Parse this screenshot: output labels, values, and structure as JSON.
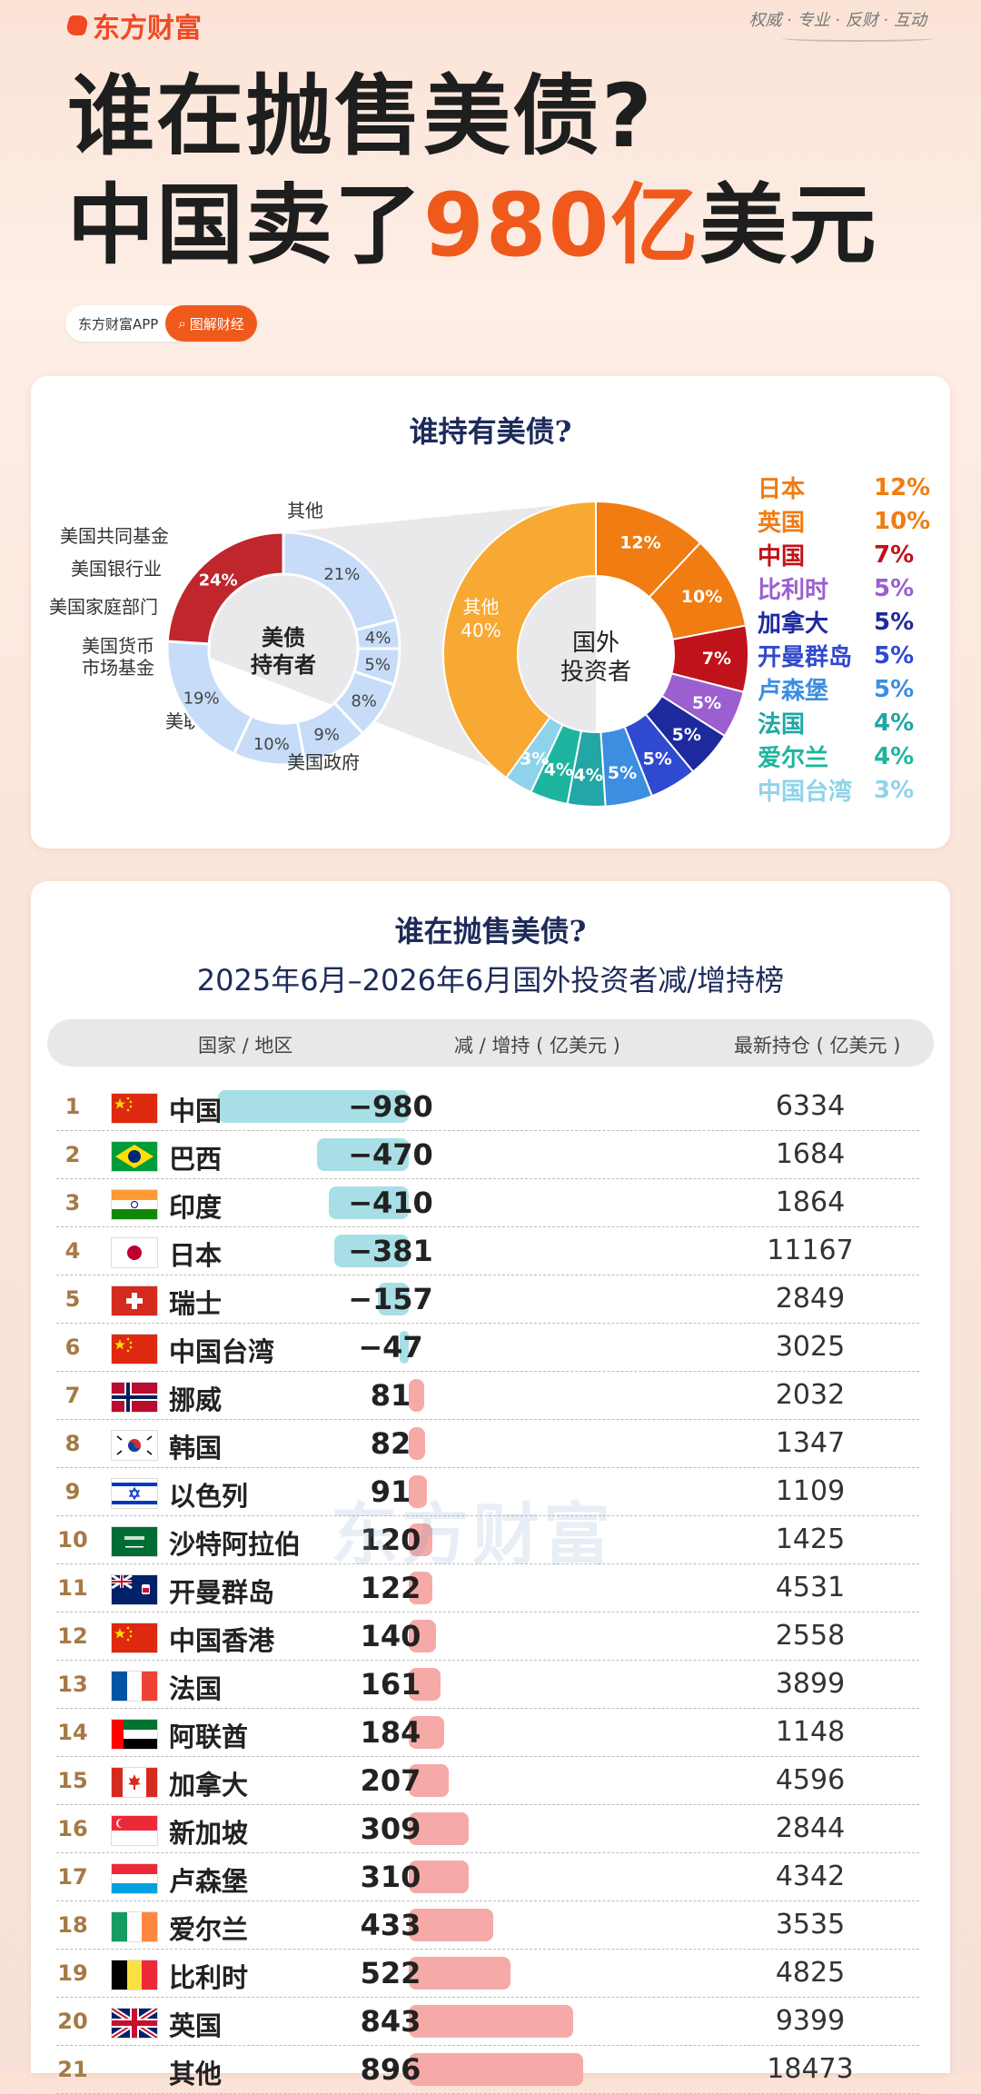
{
  "brand": {
    "logo": "东方财富",
    "slogan": "权威 · 专业 · 反财 · 互动",
    "watermark": "东方财富"
  },
  "headline": {
    "line1": "谁在抛售美债?",
    "line2_pre": "中国卖了",
    "line2_hl": "980亿",
    "line2_post": "美元"
  },
  "app": {
    "name": "东方财富APP",
    "button": "图解财经"
  },
  "chart_data": [
    {
      "type": "pie",
      "title": "谁持有美债?",
      "center_label": "美债\n持有者",
      "slices": [
        {
          "label": "其他",
          "value": 21,
          "color": "#c6dcf8"
        },
        {
          "label": "美国共同基金",
          "value": 4,
          "color": "#c6dcf8"
        },
        {
          "label": "美国银行业",
          "value": 5,
          "color": "#c6dcf8"
        },
        {
          "label": "美国家庭部门",
          "value": 8,
          "color": "#c6dcf8"
        },
        {
          "label": "美国货币\n市场基金",
          "value": 9,
          "color": "#c6dcf8"
        },
        {
          "label": "美联储",
          "value": 10,
          "color": "#c6dcf8"
        },
        {
          "label": "美国政府",
          "value": 19,
          "color": "#c6dcf8"
        },
        {
          "label": "国外投资者",
          "value": 24,
          "color": "#c0272d"
        }
      ]
    },
    {
      "type": "pie",
      "center_label": "国外\n投资者",
      "slices": [
        {
          "label": "日本",
          "value": 12,
          "color": "#f07c12"
        },
        {
          "label": "英国",
          "value": 10,
          "color": "#f07c12"
        },
        {
          "label": "中国",
          "value": 7,
          "color": "#c0121a"
        },
        {
          "label": "比利时",
          "value": 5,
          "color": "#9b5fd0"
        },
        {
          "label": "加拿大",
          "value": 5,
          "color": "#1d2a9e"
        },
        {
          "label": "开曼群岛",
          "value": 5,
          "color": "#2f49d0"
        },
        {
          "label": "卢森堡",
          "value": 5,
          "color": "#3b8ee0"
        },
        {
          "label": "法国",
          "value": 4,
          "color": "#22a6a6"
        },
        {
          "label": "爱尔兰",
          "value": 4,
          "color": "#1eb5a0"
        },
        {
          "label": "中国台湾",
          "value": 3,
          "color": "#8fd3ea"
        },
        {
          "label": "其他",
          "value": 40,
          "color": "#f7a933"
        }
      ]
    },
    {
      "type": "bar",
      "title": "谁在抛售美债?",
      "subtitle": "2025年6月–2026年6月国外投资者减/增持榜",
      "columns": [
        "国家 / 地区",
        "减 / 增持 ( 亿美元 )",
        "最新持仓 ( 亿美元 )"
      ],
      "rows": [
        {
          "rank": "1",
          "name": "中国",
          "change": -980,
          "change_label": "−980",
          "holding": "6334",
          "flag": "cn"
        },
        {
          "rank": "2",
          "name": "巴西",
          "change": -470,
          "change_label": "−470",
          "holding": "1684",
          "flag": "br"
        },
        {
          "rank": "3",
          "name": "印度",
          "change": -410,
          "change_label": "−410",
          "holding": "1864",
          "flag": "in"
        },
        {
          "rank": "4",
          "name": "日本",
          "change": -381,
          "change_label": "−381",
          "holding": "11167",
          "flag": "jp"
        },
        {
          "rank": "5",
          "name": "瑞士",
          "change": -157,
          "change_label": "−157",
          "holding": "2849",
          "flag": "ch"
        },
        {
          "rank": "6",
          "name": "中国台湾",
          "change": -47,
          "change_label": "−47",
          "holding": "3025",
          "flag": "cn"
        },
        {
          "rank": "7",
          "name": "挪威",
          "change": 81,
          "change_label": "81",
          "holding": "2032",
          "flag": "no"
        },
        {
          "rank": "8",
          "name": "韩国",
          "change": 82,
          "change_label": "82",
          "holding": "1347",
          "flag": "kr"
        },
        {
          "rank": "9",
          "name": "以色列",
          "change": 91,
          "change_label": "91",
          "holding": "1109",
          "flag": "il"
        },
        {
          "rank": "10",
          "name": "沙特阿拉伯",
          "change": 120,
          "change_label": "120",
          "holding": "1425",
          "flag": "sa"
        },
        {
          "rank": "11",
          "name": "开曼群岛",
          "change": 122,
          "change_label": "122",
          "holding": "4531",
          "flag": "ky"
        },
        {
          "rank": "12",
          "name": "中国香港",
          "change": 140,
          "change_label": "140",
          "holding": "2558",
          "flag": "cn"
        },
        {
          "rank": "13",
          "name": "法国",
          "change": 161,
          "change_label": "161",
          "holding": "3899",
          "flag": "fr"
        },
        {
          "rank": "14",
          "name": "阿联酋",
          "change": 184,
          "change_label": "184",
          "holding": "1148",
          "flag": "ae"
        },
        {
          "rank": "15",
          "name": "加拿大",
          "change": 207,
          "change_label": "207",
          "holding": "4596",
          "flag": "ca"
        },
        {
          "rank": "16",
          "name": "新加坡",
          "change": 309,
          "change_label": "309",
          "holding": "2844",
          "flag": "sg"
        },
        {
          "rank": "17",
          "name": "卢森堡",
          "change": 310,
          "change_label": "310",
          "holding": "4342",
          "flag": "lu"
        },
        {
          "rank": "18",
          "name": "爱尔兰",
          "change": 433,
          "change_label": "433",
          "holding": "3535",
          "flag": "ie"
        },
        {
          "rank": "19",
          "name": "比利时",
          "change": 522,
          "change_label": "522",
          "holding": "4825",
          "flag": "be"
        },
        {
          "rank": "20",
          "name": "英国",
          "change": 843,
          "change_label": "843",
          "holding": "9399",
          "flag": "gb"
        },
        {
          "rank": "21",
          "name": "其他",
          "change": 896,
          "change_label": "896",
          "holding": "18473",
          "flag": ""
        }
      ]
    }
  ]
}
